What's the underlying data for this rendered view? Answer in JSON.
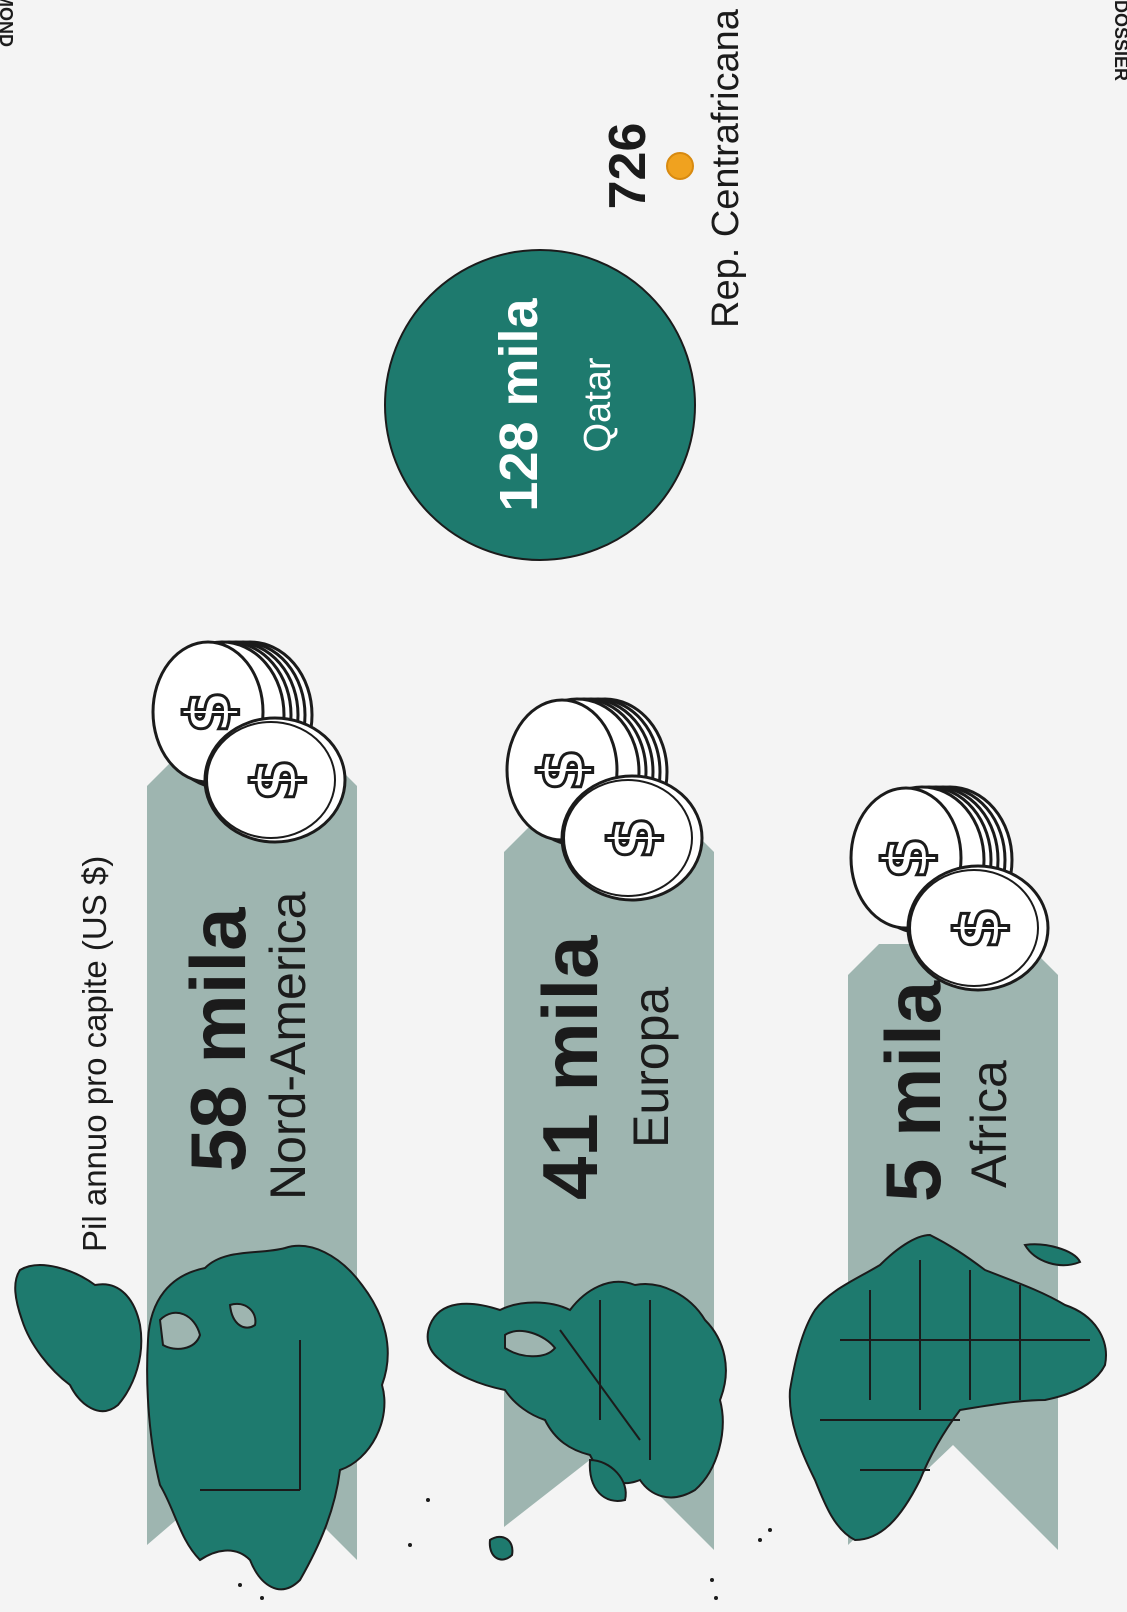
{
  "header": {
    "top_left_fragment": "MOND",
    "top_right_fragment": "DOSSIER"
  },
  "axis_caption": "Pil annuo pro capite (US $)",
  "colors": {
    "background": "#f4f4f4",
    "band": "#9eb5b0",
    "map": "#1e7a6e",
    "outline": "#1b1b1b",
    "min_dot": "#f0a21f",
    "coin_fill": "#ffffff"
  },
  "regions": [
    {
      "value": "58 mila",
      "name": "Nord-America",
      "icon": "north-america-map",
      "coin_icon": "dollar-coin-stack"
    },
    {
      "value": "41 mila",
      "name": "Europa",
      "icon": "europe-map",
      "coin_icon": "dollar-coin-stack"
    },
    {
      "value": "5 mila",
      "name": "Africa",
      "icon": "africa-map",
      "coin_icon": "dollar-coin-stack"
    }
  ],
  "max_country": {
    "value": "128 mila",
    "name": "Qatar"
  },
  "min_country": {
    "value": "726",
    "name": "Rep. Centrafricana"
  }
}
